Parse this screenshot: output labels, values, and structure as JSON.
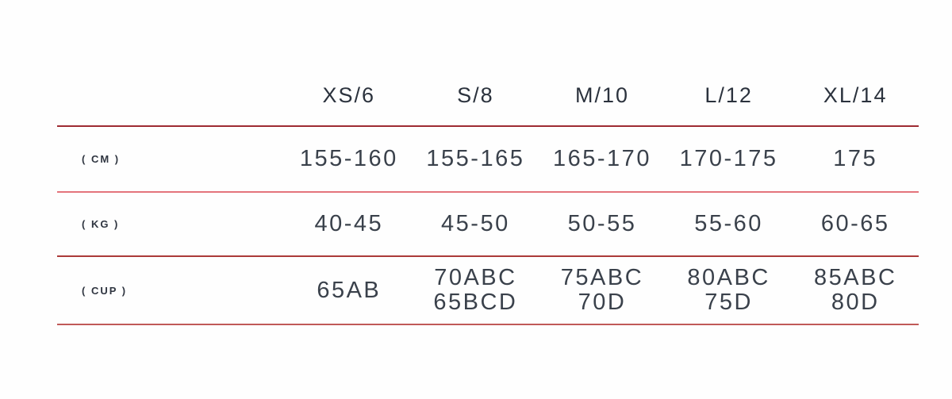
{
  "size_chart": {
    "columns": [
      {
        "label": "XS/6"
      },
      {
        "label": "S/8"
      },
      {
        "label": "M/10"
      },
      {
        "label": "L/12"
      },
      {
        "label": "XL/14"
      }
    ],
    "rows": [
      {
        "label": "( CM )",
        "values": [
          [
            "155-160"
          ],
          [
            "155-165"
          ],
          [
            "165-170"
          ],
          [
            "170-175"
          ],
          [
            "175"
          ]
        ]
      },
      {
        "label": "( KG )",
        "values": [
          [
            "40-45"
          ],
          [
            "45-50"
          ],
          [
            "50-55"
          ],
          [
            "55-60"
          ],
          [
            "60-65"
          ]
        ]
      },
      {
        "label": "( CUP )",
        "values": [
          [
            "65AB"
          ],
          [
            "70ABC",
            "65BCD"
          ],
          [
            "75ABC",
            "70D"
          ],
          [
            "80ABC",
            "75D"
          ],
          [
            "85ABC",
            "80D"
          ]
        ]
      }
    ],
    "divider_colors": [
      "#9e2b33",
      "#e4747c",
      "#ab3a39",
      "#c05a58"
    ],
    "text_color": "#2f3540",
    "background_color": "#fefefe"
  },
  "chart_data": {
    "type": "table",
    "title": "",
    "columns": [
      "",
      "XS/6",
      "S/8",
      "M/10",
      "L/12",
      "XL/14"
    ],
    "rows": [
      [
        "( CM )",
        "155-160",
        "155-165",
        "165-170",
        "170-175",
        "175"
      ],
      [
        "( KG )",
        "40-45",
        "45-50",
        "50-55",
        "55-60",
        "60-65"
      ],
      [
        "( CUP )",
        "65AB",
        "70ABC / 65BCD",
        "75ABC / 70D",
        "80ABC / 75D",
        "85ABC / 80D"
      ]
    ],
    "layout": {
      "grid": "horizontal-red-dividers-only",
      "header_position": "top",
      "row_label_position": "left"
    }
  }
}
